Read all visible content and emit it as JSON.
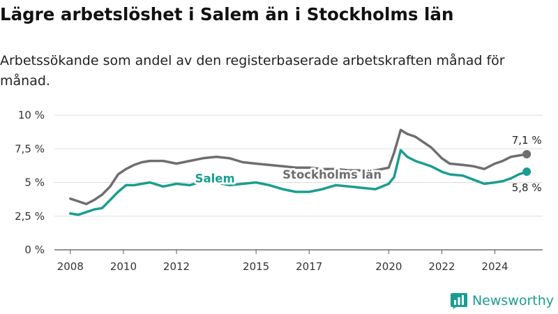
{
  "title": "Lägre arbetslöshet i Salem än i Stockholms län",
  "subtitle": "Arbetssökande som andel av den registerbaserade arbetskraften månad för månad.",
  "brand": {
    "name": "Newsworthy",
    "icon": "bar-chart-logo-icon",
    "color": "#1a9d90"
  },
  "chart_data": {
    "type": "line",
    "xlim": [
      2007.4,
      2025.8
    ],
    "ylim": [
      0,
      10
    ],
    "x_ticks": [
      {
        "value": 2008,
        "label": "2008"
      },
      {
        "value": 2010,
        "label": "2010"
      },
      {
        "value": 2012,
        "label": "2012"
      },
      {
        "value": 2015,
        "label": "2015"
      },
      {
        "value": 2017,
        "label": "2017"
      },
      {
        "value": 2020,
        "label": "2020"
      },
      {
        "value": 2022,
        "label": "2022"
      },
      {
        "value": 2024,
        "label": "2024"
      }
    ],
    "y_ticks": [
      {
        "value": 0,
        "label": "0 %"
      },
      {
        "value": 2.5,
        "label": "2,5 %"
      },
      {
        "value": 5,
        "label": "5 %"
      },
      {
        "value": 7.5,
        "label": "7,5 %"
      },
      {
        "value": 10,
        "label": "10 %"
      }
    ],
    "grid": true,
    "series": [
      {
        "name": "Stockholms län",
        "color": "#6e6e6e",
        "end_label": "7,1 %",
        "label_anchor": {
          "x": 2016.0,
          "y": 5.6
        },
        "points": [
          [
            2008.0,
            3.8
          ],
          [
            2008.3,
            3.6
          ],
          [
            2008.6,
            3.4
          ],
          [
            2008.9,
            3.7
          ],
          [
            2009.2,
            4.1
          ],
          [
            2009.5,
            4.7
          ],
          [
            2009.8,
            5.6
          ],
          [
            2010.1,
            6.0
          ],
          [
            2010.4,
            6.3
          ],
          [
            2010.7,
            6.5
          ],
          [
            2011.0,
            6.6
          ],
          [
            2011.5,
            6.6
          ],
          [
            2012.0,
            6.4
          ],
          [
            2012.5,
            6.6
          ],
          [
            2013.0,
            6.8
          ],
          [
            2013.5,
            6.9
          ],
          [
            2014.0,
            6.8
          ],
          [
            2014.5,
            6.5
          ],
          [
            2015.0,
            6.4
          ],
          [
            2015.5,
            6.3
          ],
          [
            2016.0,
            6.2
          ],
          [
            2016.5,
            6.1
          ],
          [
            2017.0,
            6.1
          ],
          [
            2017.5,
            6.0
          ],
          [
            2018.0,
            6.0
          ],
          [
            2018.5,
            5.9
          ],
          [
            2019.0,
            5.9
          ],
          [
            2019.5,
            5.9
          ],
          [
            2020.0,
            6.1
          ],
          [
            2020.2,
            7.2
          ],
          [
            2020.45,
            8.9
          ],
          [
            2020.7,
            8.6
          ],
          [
            2021.0,
            8.4
          ],
          [
            2021.3,
            8.0
          ],
          [
            2021.6,
            7.6
          ],
          [
            2022.0,
            6.8
          ],
          [
            2022.3,
            6.4
          ],
          [
            2022.8,
            6.3
          ],
          [
            2023.2,
            6.2
          ],
          [
            2023.6,
            6.0
          ],
          [
            2024.0,
            6.4
          ],
          [
            2024.3,
            6.6
          ],
          [
            2024.6,
            6.9
          ],
          [
            2024.9,
            7.0
          ],
          [
            2025.2,
            7.1
          ]
        ]
      },
      {
        "name": "Salem",
        "color": "#1a9d90",
        "end_label": "5,8 %",
        "label_anchor": {
          "x": 2012.7,
          "y": 5.3
        },
        "points": [
          [
            2008.0,
            2.7
          ],
          [
            2008.3,
            2.6
          ],
          [
            2008.6,
            2.8
          ],
          [
            2008.9,
            3.0
          ],
          [
            2009.2,
            3.1
          ],
          [
            2009.5,
            3.7
          ],
          [
            2009.8,
            4.3
          ],
          [
            2010.1,
            4.8
          ],
          [
            2010.4,
            4.8
          ],
          [
            2010.7,
            4.9
          ],
          [
            2011.0,
            5.0
          ],
          [
            2011.5,
            4.7
          ],
          [
            2012.0,
            4.9
          ],
          [
            2012.5,
            4.8
          ],
          [
            2013.0,
            5.1
          ],
          [
            2013.5,
            5.0
          ],
          [
            2014.0,
            4.8
          ],
          [
            2014.5,
            4.9
          ],
          [
            2015.0,
            5.0
          ],
          [
            2015.5,
            4.8
          ],
          [
            2016.0,
            4.5
          ],
          [
            2016.5,
            4.3
          ],
          [
            2017.0,
            4.3
          ],
          [
            2017.5,
            4.5
          ],
          [
            2018.0,
            4.8
          ],
          [
            2018.5,
            4.7
          ],
          [
            2019.0,
            4.6
          ],
          [
            2019.5,
            4.5
          ],
          [
            2020.0,
            4.9
          ],
          [
            2020.2,
            5.4
          ],
          [
            2020.45,
            7.4
          ],
          [
            2020.7,
            6.9
          ],
          [
            2021.0,
            6.6
          ],
          [
            2021.3,
            6.4
          ],
          [
            2021.6,
            6.2
          ],
          [
            2022.0,
            5.8
          ],
          [
            2022.3,
            5.6
          ],
          [
            2022.8,
            5.5
          ],
          [
            2023.2,
            5.2
          ],
          [
            2023.6,
            4.9
          ],
          [
            2024.0,
            5.0
          ],
          [
            2024.3,
            5.1
          ],
          [
            2024.6,
            5.3
          ],
          [
            2024.9,
            5.6
          ],
          [
            2025.2,
            5.8
          ]
        ]
      }
    ]
  }
}
